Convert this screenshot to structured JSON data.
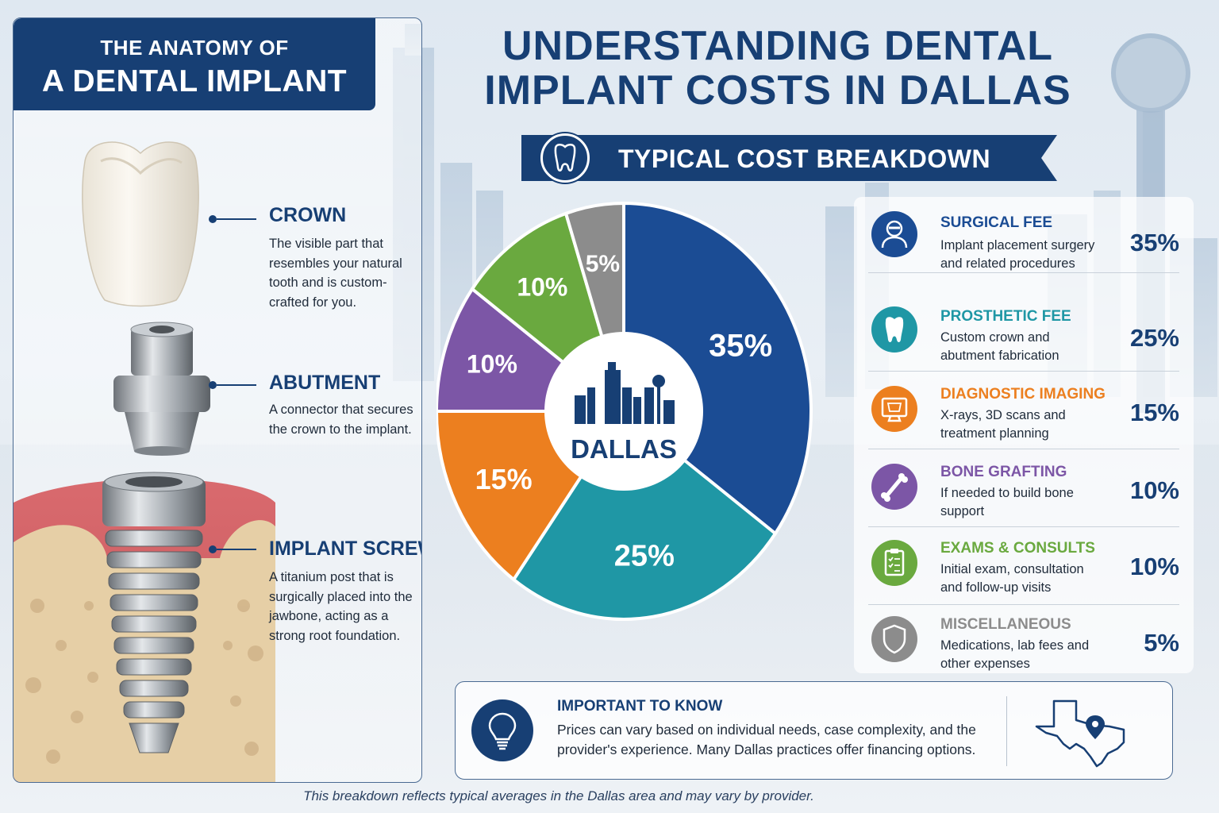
{
  "anatomy": {
    "line1": "THE ANATOMY OF",
    "line2": "A DENTAL IMPLANT",
    "parts": [
      {
        "title": "CROWN",
        "desc": "The visible part that resembles your natural tooth and is custom-crafted for you."
      },
      {
        "title": "ABUTMENT",
        "desc": "A connector that secures the crown to the implant."
      },
      {
        "title": "IMPLANT SCREW",
        "desc": "A titanium post that is surgically placed into the jawbone, acting as a strong root foundation."
      }
    ]
  },
  "title": {
    "line1": "UNDERSTANDING DENTAL",
    "line2": "IMPLANT COSTS IN DALLAS"
  },
  "breakdown_label": "TYPICAL COST BREAKDOWN",
  "chart_data": {
    "type": "pie",
    "center_label": "DALLAS",
    "categories": [
      "Surgical Fee",
      "Prosthetic Fee",
      "Diagnostic Imaging",
      "Bone Grafting",
      "Exams & Consults",
      "Miscellaneous"
    ],
    "values": [
      35,
      25,
      15,
      10,
      10,
      5
    ],
    "labels": [
      "35%",
      "25%",
      "15%",
      "10%",
      "10%",
      "5%"
    ],
    "colors": [
      "#1b4c94",
      "#1f97a5",
      "#ec7f1f",
      "#7c56a6",
      "#6aa93f",
      "#8c8c8c"
    ]
  },
  "legend": [
    {
      "title": "SURGICAL FEE",
      "desc": "Implant placement surgery and related procedures",
      "pct": "35%",
      "color": "#1b4c94",
      "icon": "surgeon-icon"
    },
    {
      "title": "PROSTHETIC FEE",
      "desc": "Custom crown and abutment fabrication",
      "pct": "25%",
      "color": "#1f97a5",
      "icon": "tooth-icon"
    },
    {
      "title": "DIAGNOSTIC IMAGING",
      "desc": "X-rays, 3D scans and treatment planning",
      "pct": "15%",
      "color": "#ec7f1f",
      "icon": "xray-monitor-icon"
    },
    {
      "title": "BONE GRAFTING",
      "desc": "If needed to build bone support",
      "pct": "10%",
      "color": "#7c56a6",
      "icon": "bone-icon"
    },
    {
      "title": "EXAMS & CONSULTS",
      "desc": "Initial exam, consultation and follow-up visits",
      "pct": "10%",
      "color": "#6aa93f",
      "icon": "clipboard-icon"
    },
    {
      "title": "MISCELLANEOUS",
      "desc": "Medications, lab fees and other expenses",
      "pct": "5%",
      "color": "#8c8c8c",
      "icon": "shield-icon"
    }
  ],
  "info": {
    "title": "IMPORTANT TO KNOW",
    "text": "Prices can vary based on individual needs, case complexity, and the provider's experience. Many Dallas practices offer financing options."
  },
  "footnote": "This breakdown reflects typical averages in the Dallas area and may vary by provider."
}
